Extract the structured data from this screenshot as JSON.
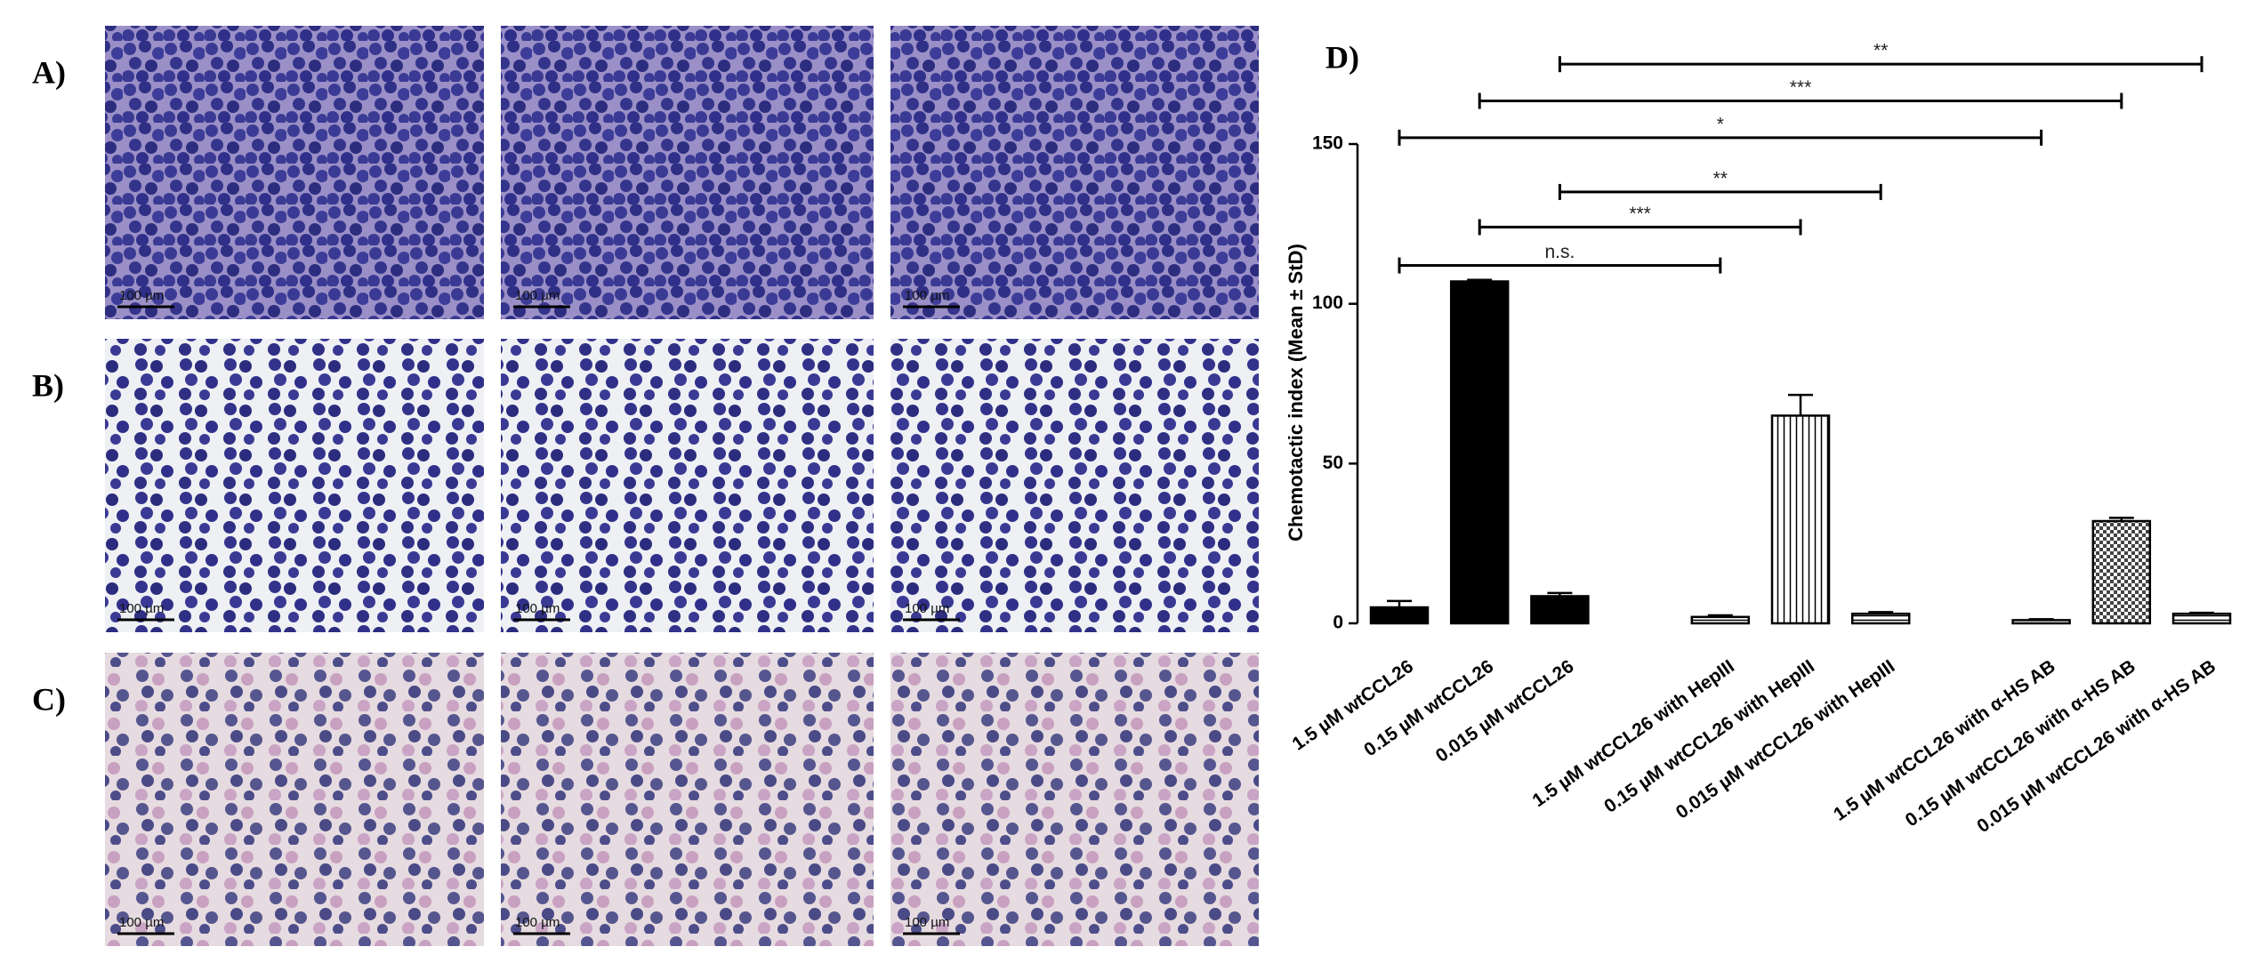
{
  "panels": [
    {
      "label": "A)",
      "scale_bars": [
        "100 µm",
        "100 µm",
        "100 µm"
      ]
    },
    {
      "label": "B)",
      "scale_bars": [
        "100 µm",
        "100 µm",
        "100 µm"
      ]
    },
    {
      "label": "C)",
      "scale_bars": [
        "100 µm",
        "100 µm",
        "100 µm"
      ]
    }
  ],
  "chart_data": {
    "type": "bar",
    "panel_label": "D)",
    "ylabel": "Chemotactic index (Mean ± StD)",
    "categories": [
      "1.5 µM wtCCL26",
      "0.15 µM wtCCL26",
      "0.015 µM wtCCL26",
      null,
      "1.5 µM wtCCL26 with HepIII",
      "0.15 µM wtCCL26 with HepIII",
      "0.015 µM wtCCL26 with HepIII",
      null,
      "1.5 µM wtCCL26 with α-HS AB",
      "0.15 µM wtCCL26 with α-HS AB",
      "0.015 µM wtCCL26 with α-HS AB"
    ],
    "values": [
      5,
      107,
      8.5,
      null,
      2,
      65,
      3,
      null,
      1,
      32,
      3
    ],
    "errors": [
      2,
      0.5,
      1,
      null,
      0.5,
      6.5,
      0.5,
      null,
      0.3,
      1,
      0.3
    ],
    "fills": [
      "black",
      "black",
      "black",
      null,
      "hstripe",
      "vstripe",
      "hstripe",
      null,
      "hstripe",
      "check",
      "hstripe"
    ],
    "ylim": [
      0,
      150
    ],
    "yticks": [
      0,
      50,
      100,
      150
    ],
    "annotations": [
      {
        "text": "n.s.",
        "from": 0,
        "to": 4,
        "y": 112
      },
      {
        "text": "***",
        "from": 1,
        "to": 5,
        "y": 124
      },
      {
        "text": "**",
        "from": 2,
        "to": 6,
        "y": 135
      },
      {
        "text": "*",
        "from": 0,
        "to": 8,
        "y": 152
      },
      {
        "text": "***",
        "from": 1,
        "to": 9,
        "y": 163.5
      },
      {
        "text": "**",
        "from": 2,
        "to": 10,
        "y": 175
      }
    ]
  }
}
